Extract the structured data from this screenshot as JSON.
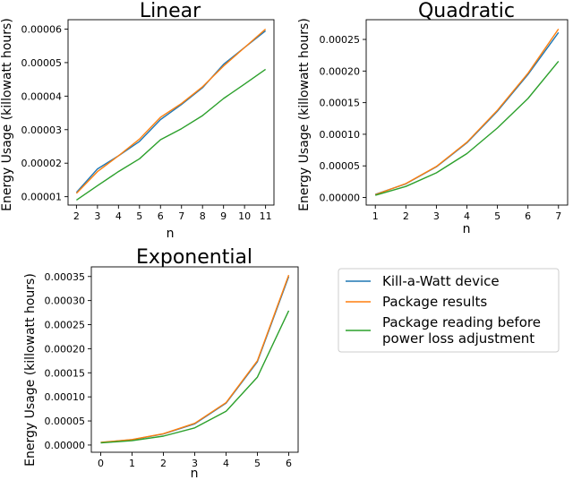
{
  "colors": {
    "Kill-a-Watt device": "#1f77b4",
    "Package results": "#ff7f0e",
    "Package reading before power loss adjustment": "#2ca02c"
  },
  "legend": {
    "entries": [
      "Kill-a-Watt device",
      "Package results",
      "Package reading before power loss adjustment"
    ],
    "display_lines": [
      [
        "Kill-a-Watt device"
      ],
      [
        "Package results"
      ],
      [
        "Package reading before",
        "power loss adjustment"
      ]
    ],
    "placement": "bottom-right"
  },
  "chart_data": [
    {
      "type": "line",
      "title": "Linear",
      "xlabel": "n",
      "ylabel": "Energy Usage (killowatt hours)",
      "x": [
        2,
        3,
        4,
        5,
        6,
        7,
        8,
        9,
        10,
        11
      ],
      "xlim": [
        1.6,
        11.4
      ],
      "ylim": [
        7.5e-06,
        6.28e-05
      ],
      "xticks": [
        2,
        3,
        4,
        5,
        6,
        7,
        8,
        9,
        10,
        11
      ],
      "xtick_labels": [
        "2",
        "3",
        "4",
        "5",
        "6",
        "7",
        "8",
        "9",
        "10",
        "11"
      ],
      "yticks": [
        1e-05,
        2e-05,
        3e-05,
        4e-05,
        5e-05,
        6e-05
      ],
      "ytick_labels": [
        "0.00001",
        "0.00002",
        "0.00003",
        "0.00004",
        "0.00005",
        "0.00006"
      ],
      "grid": false,
      "series": [
        {
          "name": "Kill-a-Watt device",
          "values": [
            1.13e-05,
            1.83e-05,
            2.22e-05,
            2.65e-05,
            3.3e-05,
            3.75e-05,
            4.25e-05,
            4.95e-05,
            5.45e-05,
            5.95e-05
          ]
        },
        {
          "name": "Package results",
          "values": [
            1.1e-05,
            1.75e-05,
            2.22e-05,
            2.72e-05,
            3.37e-05,
            3.78e-05,
            4.28e-05,
            4.9e-05,
            5.45e-05,
            6e-05
          ]
        },
        {
          "name": "Package reading before power loss adjustment",
          "values": [
            9e-06,
            1.33e-05,
            1.75e-05,
            2.13e-05,
            2.7e-05,
            3.03e-05,
            3.42e-05,
            3.93e-05,
            4.36e-05,
            4.8e-05
          ]
        }
      ]
    },
    {
      "type": "line",
      "title": "Quadratic",
      "xlabel": "n",
      "ylabel": "Energy Usage (killowatt hours)",
      "x": [
        1,
        2,
        3,
        4,
        5,
        6,
        7
      ],
      "xlim": [
        0.7,
        7.3
      ],
      "ylim": [
        -1.2e-05,
        0.0002812
      ],
      "xticks": [
        1,
        2,
        3,
        4,
        5,
        6,
        7
      ],
      "xtick_labels": [
        "1",
        "2",
        "3",
        "4",
        "5",
        "6",
        "7"
      ],
      "yticks": [
        0,
        5e-05,
        0.0001,
        0.00015,
        0.0002,
        0.00025
      ],
      "ytick_labels": [
        "0.00000",
        "0.00005",
        "0.00010",
        "0.00015",
        "0.00020",
        "0.00025"
      ],
      "grid": false,
      "series": [
        {
          "name": "Kill-a-Watt device",
          "values": [
            5e-06,
            2.15e-05,
            4.85e-05,
            8.65e-05,
            0.0001365,
            0.0001945,
            0.000261
          ]
        },
        {
          "name": "Package results",
          "values": [
            4.5e-06,
            2.2e-05,
            4.9e-05,
            8.75e-05,
            0.000138,
            0.0001965,
            0.0002665
          ]
        },
        {
          "name": "Package reading before power loss adjustment",
          "values": [
            3.5e-06,
            1.75e-05,
            3.9e-05,
            6.95e-05,
            0.00011,
            0.0001565,
            0.0002155
          ]
        }
      ]
    },
    {
      "type": "line",
      "title": "Exponential",
      "xlabel": "n",
      "ylabel": "Energy Usage (killowatt hours)",
      "x": [
        0,
        1,
        2,
        3,
        4,
        5,
        6
      ],
      "xlim": [
        -0.3,
        6.3
      ],
      "ylim": [
        -1.5e-05,
        0.00037
      ],
      "xticks": [
        0,
        1,
        2,
        3,
        4,
        5,
        6
      ],
      "xtick_labels": [
        "0",
        "1",
        "2",
        "3",
        "4",
        "5",
        "6"
      ],
      "yticks": [
        0,
        5e-05,
        0.0001,
        0.00015,
        0.0002,
        0.00025,
        0.0003,
        0.00035
      ],
      "ytick_labels": [
        "0.00000",
        "0.00005",
        "0.00010",
        "0.00015",
        "0.00020",
        "0.00025",
        "0.00030",
        "0.00035"
      ],
      "grid": false,
      "series": [
        {
          "name": "Kill-a-Watt device",
          "values": [
            5e-06,
            1.1e-05,
            2.3e-05,
            4.4e-05,
            8.7e-05,
            0.000173,
            0.00035
          ]
        },
        {
          "name": "Package results",
          "values": [
            5.5e-06,
            1.15e-05,
            2.35e-05,
            4.5e-05,
            8.8e-05,
            0.000175,
            0.000353
          ]
        },
        {
          "name": "Package reading before power loss adjustment",
          "values": [
            4.5e-06,
            9e-06,
            1.85e-05,
            3.55e-05,
            7e-05,
            0.000141,
            0.000279
          ]
        }
      ]
    }
  ]
}
